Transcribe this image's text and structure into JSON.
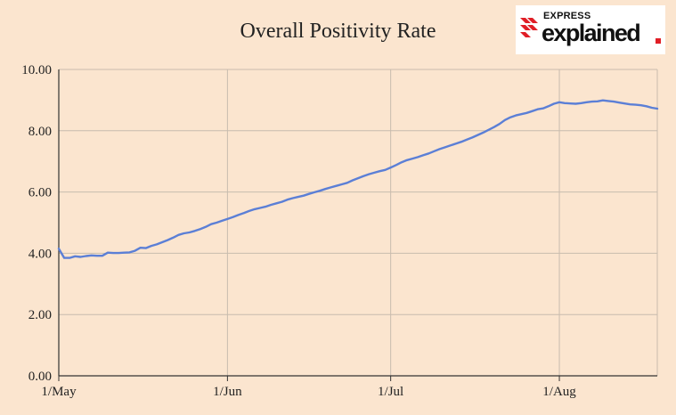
{
  "chart_data": {
    "type": "line",
    "title": "Overall Positivity Rate",
    "xlabel": "",
    "ylabel": "",
    "ylim": [
      0,
      10
    ],
    "yticks": [
      "0.00",
      "2.00",
      "4.00",
      "6.00",
      "8.00",
      "10.00"
    ],
    "xticks": [
      "1/May",
      "1/Jun",
      "1/Jul",
      "1/Aug"
    ],
    "grid": true,
    "colors": {
      "line": "#5b7fd6",
      "grid": "#c8bcae",
      "axis": "#333333",
      "background": "#fbe5cf"
    },
    "series": [
      {
        "x": [
          "05-01",
          "05-02",
          "05-03",
          "05-04",
          "05-05",
          "05-06",
          "05-07",
          "05-08",
          "05-09",
          "05-10",
          "05-11",
          "05-12",
          "05-13",
          "05-14",
          "05-15",
          "05-16",
          "05-17",
          "05-18",
          "05-19",
          "05-20",
          "05-21",
          "05-22",
          "05-23",
          "05-24",
          "05-25",
          "05-26",
          "05-27",
          "05-28",
          "05-29",
          "05-30",
          "05-31",
          "06-01",
          "06-02",
          "06-03",
          "06-04",
          "06-05",
          "06-06",
          "06-07",
          "06-08",
          "06-09",
          "06-10",
          "06-11",
          "06-12",
          "06-13",
          "06-14",
          "06-15",
          "06-16",
          "06-17",
          "06-18",
          "06-19",
          "06-20",
          "06-21",
          "06-22",
          "06-23",
          "06-24",
          "06-25",
          "06-26",
          "06-27",
          "06-28",
          "06-29",
          "06-30",
          "07-01",
          "07-02",
          "07-03",
          "07-04",
          "07-05",
          "07-06",
          "07-07",
          "07-08",
          "07-09",
          "07-10",
          "07-11",
          "07-12",
          "07-13",
          "07-14",
          "07-15",
          "07-16",
          "07-17",
          "07-18",
          "07-19",
          "07-20",
          "07-21",
          "07-22",
          "07-23",
          "07-24",
          "07-25",
          "07-26",
          "07-27",
          "07-28",
          "07-29",
          "07-30",
          "07-31",
          "08-01",
          "08-02",
          "08-03",
          "08-04",
          "08-05",
          "08-06",
          "08-07",
          "08-08",
          "08-09",
          "08-10",
          "08-11",
          "08-12",
          "08-13",
          "08-14",
          "08-15",
          "08-16",
          "08-17",
          "08-18",
          "08-19"
        ],
        "y": [
          4.15,
          3.85,
          3.85,
          3.9,
          3.88,
          3.91,
          3.93,
          3.92,
          3.92,
          4.02,
          4.01,
          4.01,
          4.02,
          4.03,
          4.08,
          4.18,
          4.17,
          4.24,
          4.29,
          4.36,
          4.43,
          4.51,
          4.6,
          4.65,
          4.68,
          4.73,
          4.79,
          4.86,
          4.95,
          5.0,
          5.06,
          5.12,
          5.18,
          5.25,
          5.31,
          5.38,
          5.44,
          5.48,
          5.52,
          5.58,
          5.63,
          5.68,
          5.75,
          5.8,
          5.84,
          5.88,
          5.94,
          5.99,
          6.04,
          6.1,
          6.15,
          6.2,
          6.25,
          6.3,
          6.38,
          6.45,
          6.52,
          6.58,
          6.63,
          6.68,
          6.72,
          6.8,
          6.88,
          6.97,
          7.04,
          7.09,
          7.14,
          7.2,
          7.26,
          7.33,
          7.4,
          7.46,
          7.52,
          7.58,
          7.64,
          7.71,
          7.78,
          7.86,
          7.94,
          8.03,
          8.12,
          8.22,
          8.35,
          8.44,
          8.5,
          8.54,
          8.58,
          8.64,
          8.7,
          8.73,
          8.8,
          8.88,
          8.93,
          8.9,
          8.89,
          8.88,
          8.9,
          8.93,
          8.95,
          8.96,
          8.99,
          8.97,
          8.95,
          8.92,
          8.89,
          8.86,
          8.85,
          8.83,
          8.8,
          8.75,
          8.72
        ]
      }
    ]
  },
  "logo": {
    "top_text": "EXPRESS",
    "bottom_text": "explained"
  },
  "colors": {
    "logo_red": "#e01e26"
  }
}
